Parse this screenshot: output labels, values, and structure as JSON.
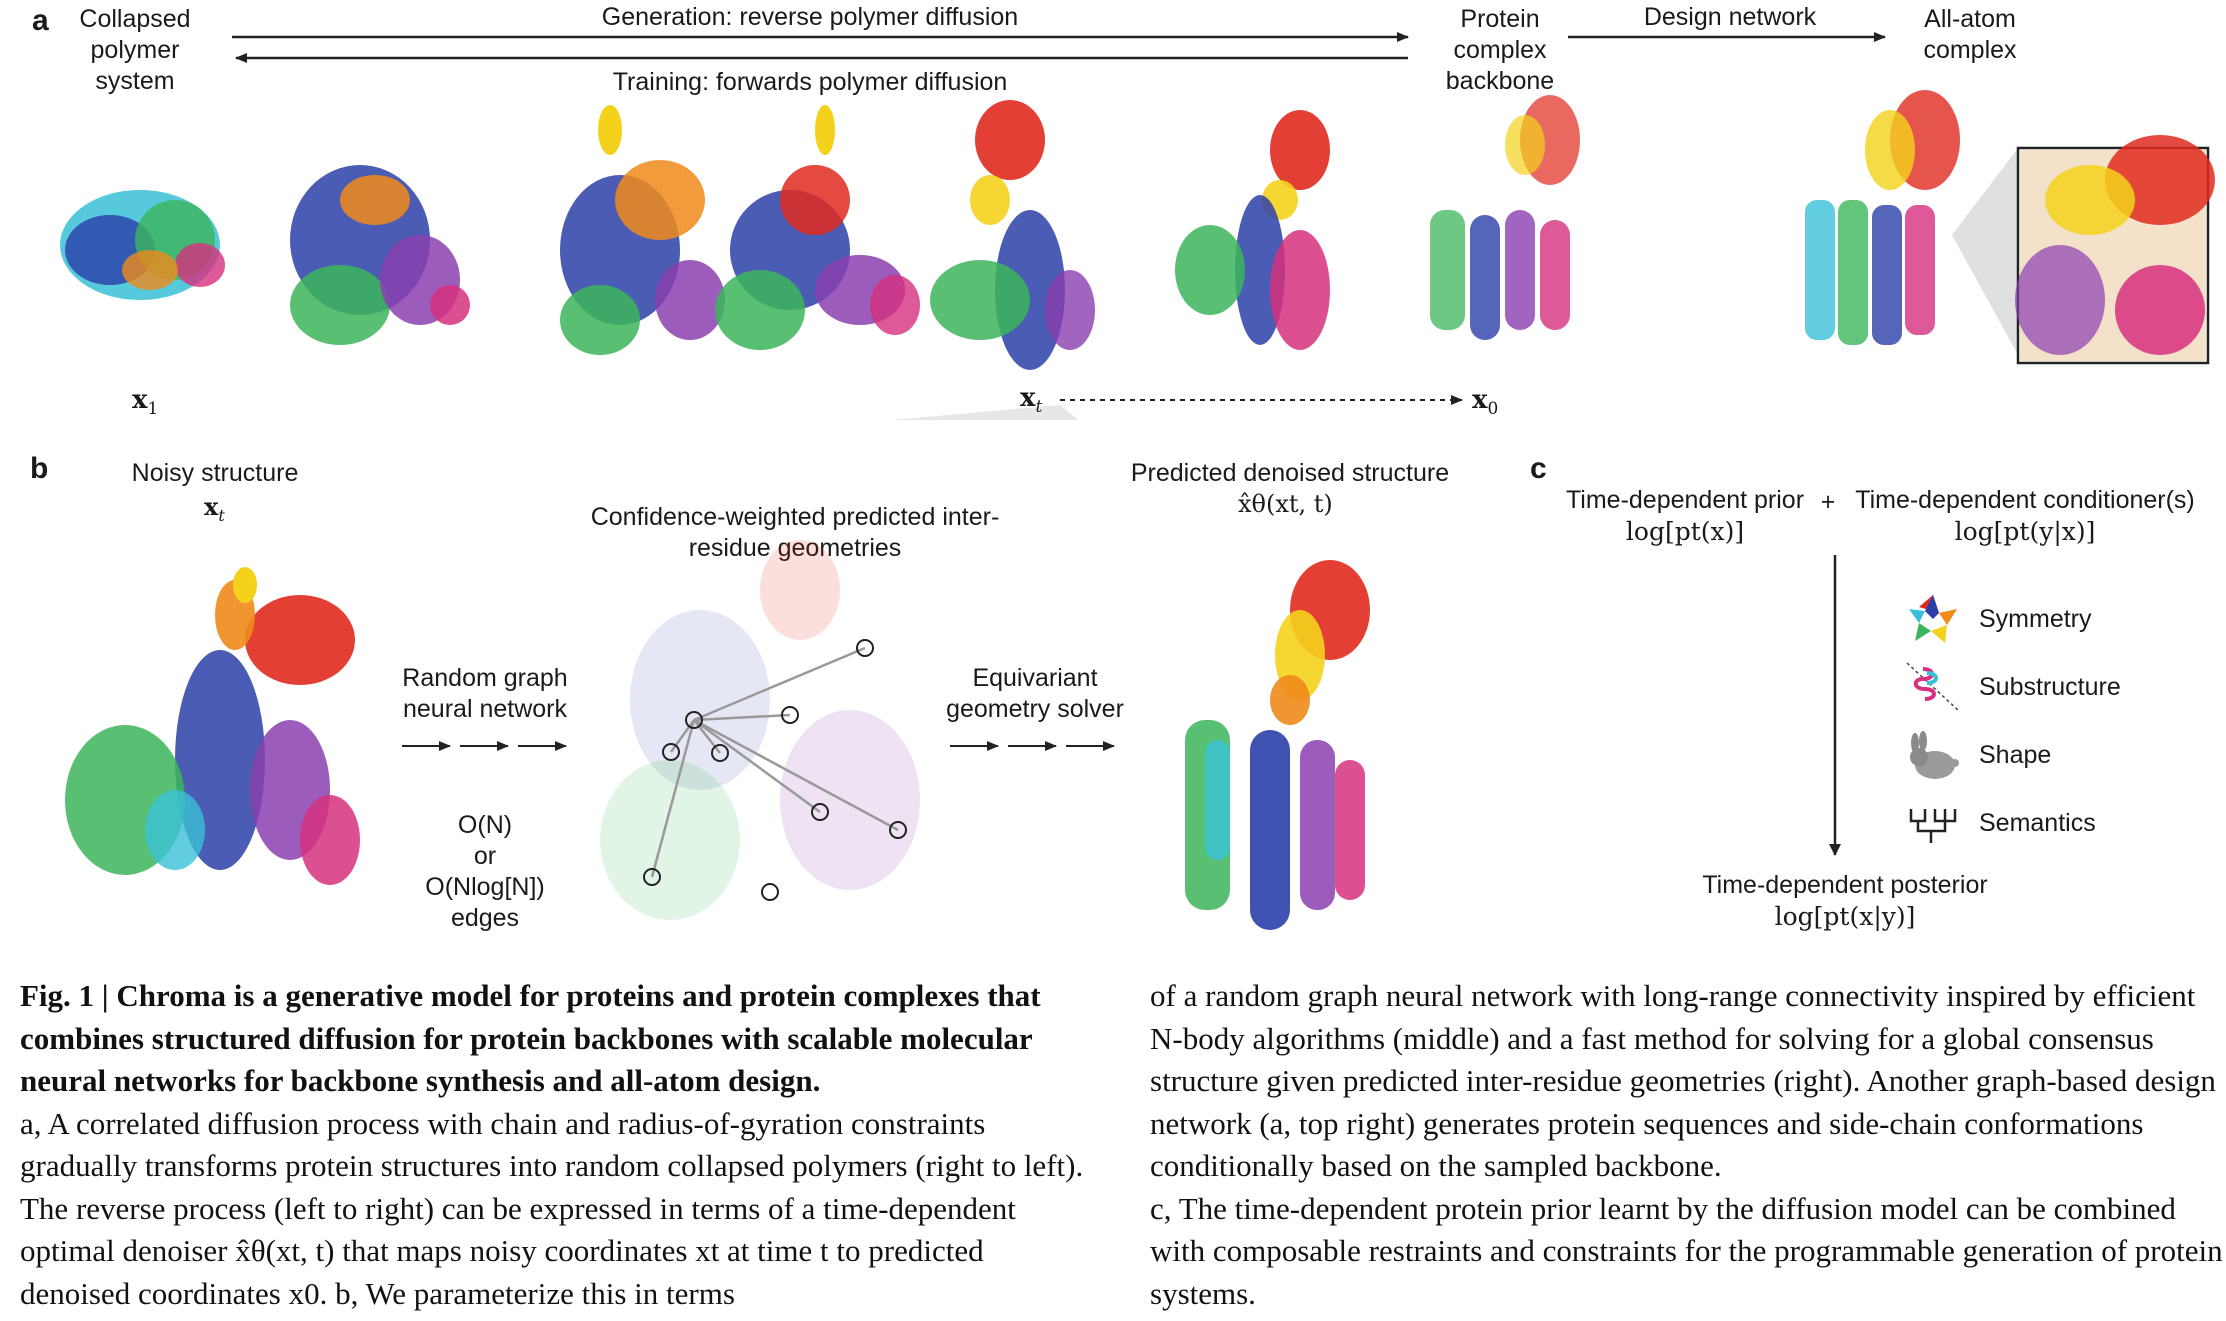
{
  "panel_a": {
    "letter": "a",
    "collapsed": "Collapsed polymer system",
    "generation": "Generation: reverse polymer diffusion",
    "training": "Training: forwards polymer diffusion",
    "backbone": "Protein complex backbone",
    "design_network": "Design network",
    "all_atom": "All-atom complex",
    "x1": "x",
    "x1_sub": "1",
    "xt": "x",
    "xt_sub": "t",
    "x0": "x",
    "x0_sub": "0"
  },
  "panel_b": {
    "letter": "b",
    "noisy": "Noisy structure",
    "noisy_var": "x",
    "noisy_sub": "t",
    "confidence": "Confidence-weighted predicted inter-residue geometries",
    "rgnn": "Random graph neural network",
    "complexity_1": "O(N)",
    "complexity_or": "or",
    "complexity_2": "O(Nlog[N])",
    "complexity_edges": "edges",
    "solver": "Equivariant geometry solver",
    "predicted": "Predicted denoised structure",
    "predicted_formula": "x̂θ(xt, t)"
  },
  "panel_c": {
    "letter": "c",
    "prior": "Time-dependent prior",
    "prior_formula": "log[pt(x)]",
    "plus": "+",
    "conditioner": "Time-dependent conditioner(s)",
    "conditioner_formula": "log[pt(y|x)]",
    "items": [
      {
        "label": "Symmetry",
        "icon": "symmetry-icon"
      },
      {
        "label": "Substructure",
        "icon": "substructure-icon"
      },
      {
        "label": "Shape",
        "icon": "bunny-shape-icon"
      },
      {
        "label": "Semantics",
        "icon": "semantics-tree-icon"
      }
    ],
    "posterior": "Time-dependent posterior",
    "posterior_formula": "log[pt(x|y)]"
  },
  "caption": {
    "fig_label": "Fig. 1 |",
    "title": "Chroma is a generative model for proteins and protein complexes that combines structured diffusion for protein backbones with scalable molecular neural networks for backbone synthesis and all-atom design.",
    "left_body": "a, A correlated diffusion process with chain and radius-of-gyration constraints gradually transforms protein structures into random collapsed polymers (right to left). The reverse process (left to right) can be expressed in terms of a time-dependent optimal denoiser x̂θ(xt, t) that maps noisy coordinates xt at time t to predicted denoised coordinates x0. b, We parameterize this in terms",
    "right_p1": "of a random graph neural network with long-range connectivity inspired by efficient N-body algorithms (middle) and a fast method for solving for a global consensus structure given predicted inter-residue geometries (right). Another graph-based design network (a, top right) generates protein sequences and side-chain conformations conditionally based on the sampled backbone.",
    "right_p2": "c, The time-dependent protein prior learnt by the diffusion model can be combined with composable restraints and constraints for the programmable generation of protein systems."
  },
  "colors": {
    "blue": "#2b3fa8",
    "teal": "#39c0d6",
    "green": "#3cb55a",
    "purple": "#8a3fb0",
    "magenta": "#d6307e",
    "orange": "#f08a1a",
    "red": "#e02a1e",
    "yellow": "#f4d21c"
  }
}
